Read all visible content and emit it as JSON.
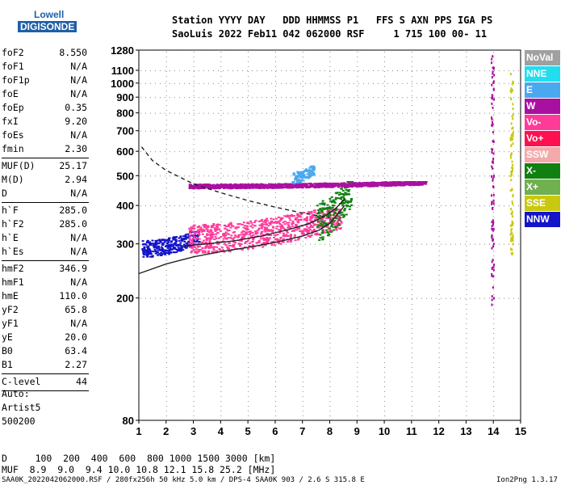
{
  "logo": {
    "top": "Lowell",
    "bottom": "DIGISONDE"
  },
  "header": {
    "line1": "Station YYYY DAY   DDD HHMMSS P1   FFS S AXN PPS IGA PS",
    "line2": "SaoLuis 2022 Feb11 042 062000 RSF     1 715 100 00- 11"
  },
  "params_group1": [
    {
      "name": "foF2",
      "value": "8.550"
    },
    {
      "name": "foF1",
      "value": "N/A"
    },
    {
      "name": "foF1p",
      "value": "N/A"
    },
    {
      "name": "foE",
      "value": "N/A"
    },
    {
      "name": "foEp",
      "value": "0.35"
    },
    {
      "name": "fxI",
      "value": "9.20"
    },
    {
      "name": "foEs",
      "value": "N/A"
    },
    {
      "name": "fmin",
      "value": "2.30"
    }
  ],
  "params_group2": [
    {
      "name": "MUF(D)",
      "value": "25.17"
    },
    {
      "name": "M(D)",
      "value": "2.94"
    },
    {
      "name": "D",
      "value": "N/A"
    }
  ],
  "params_group3": [
    {
      "name": "h`F",
      "value": "285.0"
    },
    {
      "name": "h`F2",
      "value": "285.0"
    },
    {
      "name": "h`E",
      "value": "N/A"
    },
    {
      "name": "h`Es",
      "value": "N/A"
    }
  ],
  "params_group4": [
    {
      "name": "hmF2",
      "value": "346.9"
    },
    {
      "name": "hmF1",
      "value": "N/A"
    },
    {
      "name": "hmE",
      "value": "110.0"
    },
    {
      "name": "yF2",
      "value": "65.8"
    },
    {
      "name": "yF1",
      "value": "N/A"
    },
    {
      "name": "yE",
      "value": "20.0"
    },
    {
      "name": "B0",
      "value": "63.4"
    },
    {
      "name": "B1",
      "value": "2.27"
    }
  ],
  "clevel": {
    "name": "C-level",
    "value": "44"
  },
  "auto": {
    "line1": "Auto:",
    "line2": "Artist5",
    "line3": "500200"
  },
  "footer": {
    "d_label": "D",
    "d_values": "100  200  400  600  800 1000 1500 3000 [km]",
    "muf_label": "MUF",
    "muf_values": "8.9  9.0  9.4 10.0 10.8 12.1 15.8 25.2 [MHz]",
    "line3": "SAA0K_2022042062000.RSF / 280fx256h 50 kHz 5.0 km / DPS-4 SAA0K 903 / 2.6 S 315.8 E",
    "version": "Ion2Png 1.3.17"
  },
  "legend": [
    {
      "label": "NoVal",
      "color": "#a0a0a0"
    },
    {
      "label": "NNE",
      "color": "#22ddee"
    },
    {
      "label": "E",
      "color": "#4aa8ee"
    },
    {
      "label": "W",
      "color": "#aa10a0"
    },
    {
      "label": "Vo-",
      "color": "#ff3b9a"
    },
    {
      "label": "Vo+",
      "color": "#ff1050"
    },
    {
      "label": "SSW",
      "color": "#f4aaaa"
    },
    {
      "label": "X-",
      "color": "#108010"
    },
    {
      "label": "X+",
      "color": "#70b050"
    },
    {
      "label": "SSE",
      "color": "#c8c810"
    },
    {
      "label": "NNW",
      "color": "#1414c8"
    }
  ],
  "chart_data": {
    "type": "scatter",
    "title": "",
    "xlabel": "",
    "ylabel": "",
    "xlim": [
      1,
      15
    ],
    "ylim": [
      80,
      1280
    ],
    "x_ticks": [
      "1",
      "2",
      "3",
      "4",
      "5",
      "6",
      "7",
      "8",
      "9",
      "10",
      "11",
      "12",
      "13",
      "14",
      "15"
    ],
    "y_ticks": [
      "80",
      "200",
      "300",
      "400",
      "500",
      "600",
      "700",
      "800",
      "900",
      "1000",
      "1100",
      "1280"
    ],
    "y_scale": "log",
    "grid": true,
    "series": [
      {
        "color": "#1414c8",
        "x_range": [
          1.1,
          3.2
        ],
        "y_range": [
          270,
          330
        ]
      },
      {
        "color": "#ff3b9a",
        "x_range": [
          2.8,
          8.4
        ],
        "y_range": [
          275,
          390
        ]
      },
      {
        "color": "#108010",
        "x_range": [
          7.5,
          8.8
        ],
        "y_range": [
          300,
          480
        ]
      },
      {
        "color": "#aa10a0",
        "x_range": [
          2.8,
          11.5
        ],
        "y_range": [
          455,
          480
        ]
      },
      {
        "color": "#4aa8ee",
        "x_range": [
          6.6,
          7.4
        ],
        "y_range": [
          470,
          540
        ]
      },
      {
        "color": "#aa10a0",
        "x_range": [
          13.9,
          14.0
        ],
        "y_range": [
          190,
          1260
        ]
      },
      {
        "color": "#c8c810",
        "x_range": [
          14.6,
          14.7
        ],
        "y_range": [
          280,
          1080
        ]
      }
    ],
    "curves": [
      {
        "style": "solid",
        "x": [
          1.0,
          2.0,
          3.0,
          4.0,
          5.0,
          6.0,
          7.0,
          7.6,
          8.0,
          8.3,
          8.55
        ],
        "y": [
          240,
          258,
          272,
          283,
          292,
          303,
          318,
          332,
          350,
          375,
          400
        ]
      },
      {
        "style": "solid",
        "x": [
          2.6,
          3.5,
          4.5,
          5.5,
          6.5,
          7.2,
          7.8,
          8.2,
          8.55
        ],
        "y": [
          295,
          300,
          307,
          318,
          334,
          348,
          368,
          390,
          420
        ]
      },
      {
        "style": "dashed",
        "x": [
          1.1,
          1.5,
          2.0,
          3.0,
          4.0,
          5.0,
          6.0,
          7.0,
          8.0
        ],
        "y": [
          620,
          560,
          520,
          470,
          440,
          415,
          395,
          378,
          365
        ]
      }
    ]
  }
}
